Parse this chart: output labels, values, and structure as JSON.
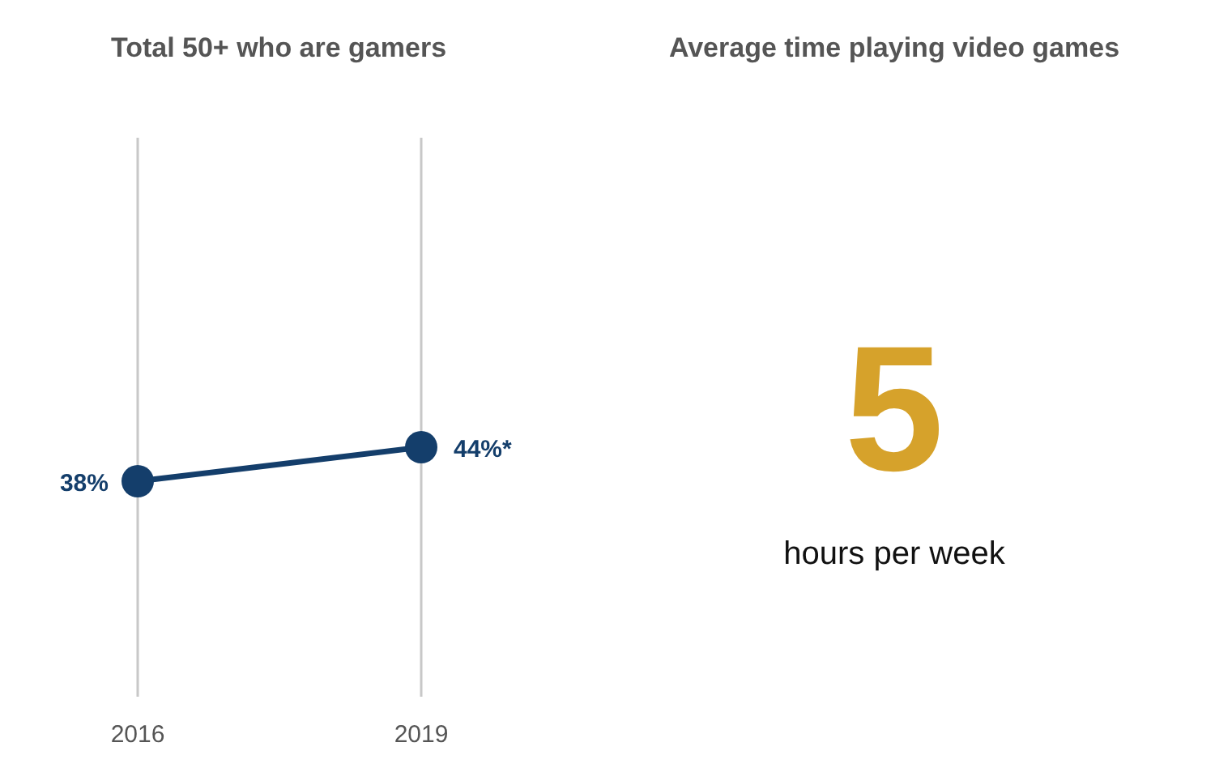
{
  "chart_data": [
    {
      "type": "line",
      "title": "Total 50+ who are gamers",
      "categories": [
        "2016",
        "2019"
      ],
      "color": "#143e6b",
      "values": [
        38,
        44
      ],
      "value_labels": [
        "38%",
        "44%*"
      ],
      "grid": "x",
      "marker": "circle"
    },
    {
      "type": "other",
      "title": "Average time playing video games",
      "colors": [
        "#d6a22b"
      ],
      "annotations": [
        "5",
        "hours per week"
      ]
    }
  ]
}
